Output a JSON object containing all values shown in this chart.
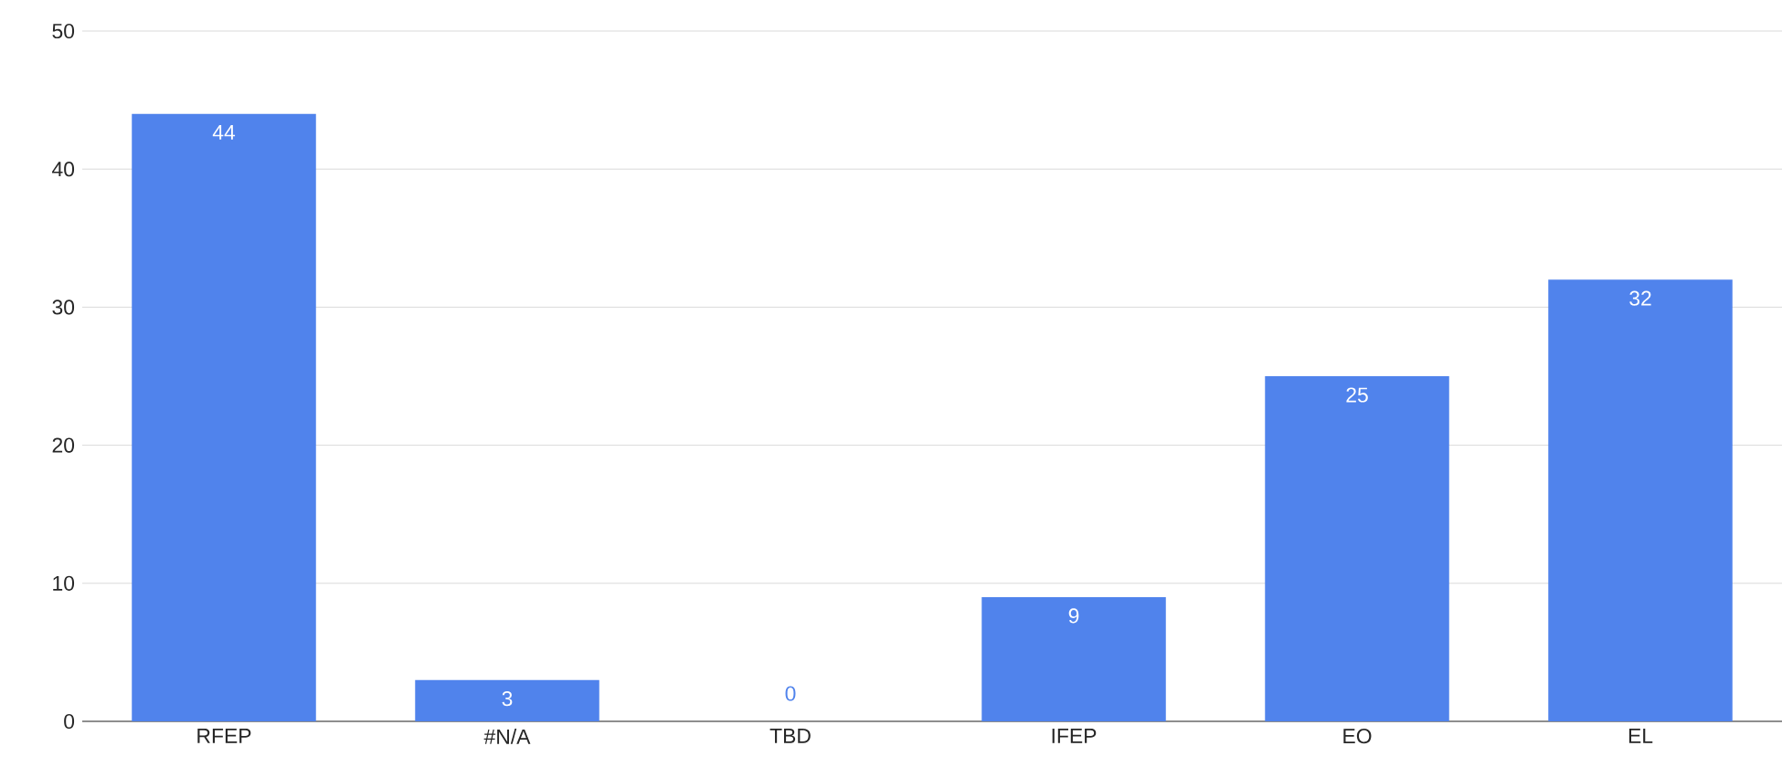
{
  "chart_data": {
    "type": "bar",
    "categories": [
      "RFEP",
      "#N/A",
      "TBD",
      "IFEP",
      "EO",
      "EL"
    ],
    "values": [
      44,
      3,
      0,
      9,
      25,
      32
    ],
    "color": "#5083ec",
    "ylim": [
      0,
      50
    ],
    "yticks": [
      0,
      10,
      20,
      30,
      40,
      50
    ],
    "grid": "y",
    "data_labels": true
  }
}
